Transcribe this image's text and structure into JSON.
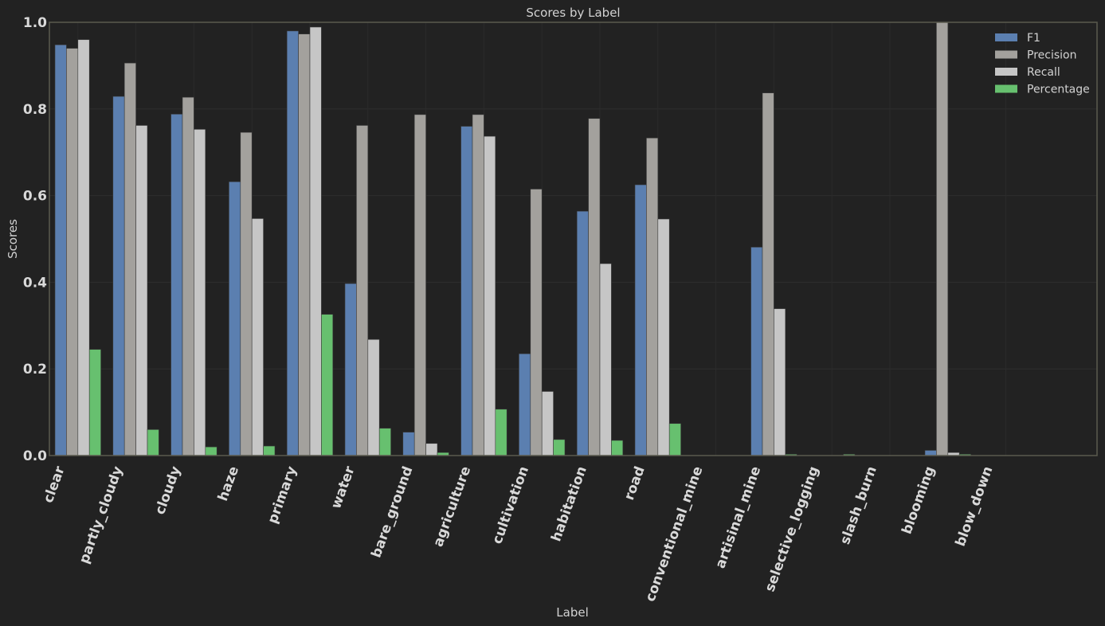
{
  "chart_data": {
    "type": "bar",
    "title": "Scores by Label",
    "xlabel": "Label",
    "ylabel": "Scores",
    "ylim": [
      0,
      1.0
    ],
    "yticks": [
      "0.0",
      "0.2",
      "0.4",
      "0.6",
      "0.8",
      "1.0"
    ],
    "grid": true,
    "legend_position": "top-right",
    "categories": [
      "clear",
      "partly_cloudy",
      "cloudy",
      "haze",
      "primary",
      "water",
      "bare_ground",
      "agriculture",
      "cultivation",
      "habitation",
      "road",
      "conventional_mine",
      "artisinal_mine",
      "selective_logging",
      "slash_burn",
      "blooming",
      "blow_down"
    ],
    "series": [
      {
        "name": "F1",
        "color": "#5b7fb0",
        "values": [
          0.948,
          0.829,
          0.788,
          0.632,
          0.98,
          0.397,
          0.054,
          0.76,
          0.235,
          0.564,
          0.625,
          0.0,
          0.481,
          0.0,
          0.0,
          0.012,
          0.0
        ]
      },
      {
        "name": "Precision",
        "color": "#a3a19d",
        "values": [
          0.94,
          0.906,
          0.827,
          0.746,
          0.973,
          0.762,
          0.787,
          0.787,
          0.615,
          0.778,
          0.733,
          0.0,
          0.837,
          0.0,
          0.0,
          1.0,
          0.0
        ]
      },
      {
        "name": "Recall",
        "color": "#c6c6c6",
        "values": [
          0.96,
          0.762,
          0.753,
          0.547,
          0.989,
          0.268,
          0.028,
          0.737,
          0.148,
          0.443,
          0.546,
          0.0,
          0.339,
          0.0,
          0.0,
          0.007,
          0.0
        ]
      },
      {
        "name": "Percentage",
        "color": "#67c06f",
        "values": [
          0.245,
          0.06,
          0.02,
          0.022,
          0.326,
          0.063,
          0.007,
          0.107,
          0.037,
          0.035,
          0.074,
          0.0005,
          0.003,
          0.003,
          0.0005,
          0.003,
          0.0005
        ]
      }
    ]
  }
}
